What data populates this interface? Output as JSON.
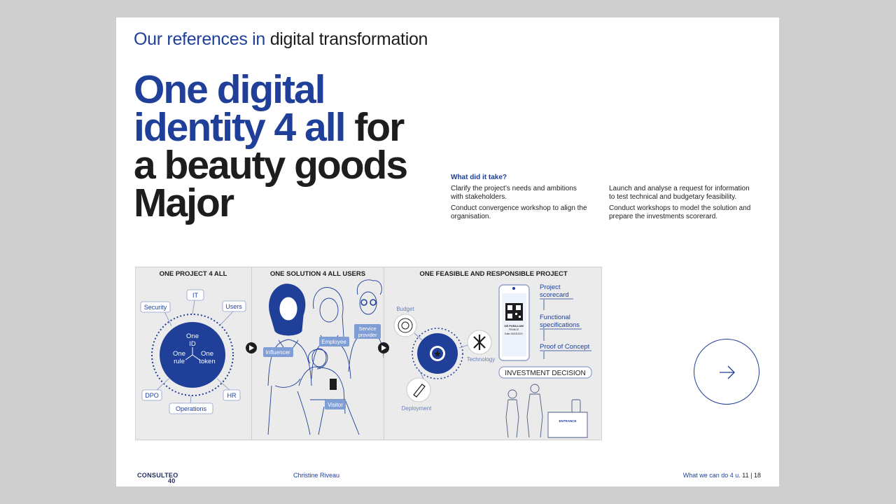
{
  "header": {
    "kicker_blue": "Our references in",
    "kicker_dark": "digital transformation"
  },
  "headline": {
    "blue_line1": "One digital",
    "blue_line2": "identity 4 all",
    "dark_line2": "for",
    "dark_line3": "a beauty goods",
    "dark_line4": "Major"
  },
  "what_it_took": {
    "title": "What did it take?",
    "col1": [
      "Clarify the project’s needs and ambitions with stakeholders.",
      "Conduct convergence workshop to align the organisation."
    ],
    "col2": [
      "Launch and analyse a request for information to test technical and budgetary feasibility.",
      "Conduct workshops to model the solution and prepare the investments scorerard."
    ]
  },
  "illustration": {
    "panel1": {
      "title": "ONE PROJECT 4 ALL",
      "center_top": [
        "One",
        "ID"
      ],
      "center_left": [
        "One",
        "rule"
      ],
      "center_right": [
        "One",
        "token"
      ],
      "labels": [
        "IT",
        "Security",
        "Users",
        "DPO",
        "HR",
        "Operations"
      ]
    },
    "panel2": {
      "title": "ONE SOLUTION 4 ALL USERS",
      "labels": [
        "Influencer",
        "Employee",
        "Service",
        "provider",
        "Visitor"
      ]
    },
    "panel3": {
      "title": "ONE FEASIBLE AND RESPONSIBLE PROJECT",
      "labels": [
        "Budget",
        "Technology",
        "Deployment"
      ],
      "phone_text": [
        "OE PUSILLUM",
        "FRANCE",
        "Date 25/03/2021"
      ],
      "steps": [
        "Project",
        "scorecard",
        "Functional",
        "specifications",
        "Proof of Concept"
      ],
      "decision": "INVESTMENT DECISION",
      "entrance": "ENTRANCE"
    }
  },
  "next_button": {
    "icon": "arrow-right-icon",
    "color": "#1f3f99"
  },
  "footer": {
    "logo_main": "CONSULTEO",
    "logo_sub": "40",
    "author": "Christine Riveau",
    "section": "What we can do 4 u.",
    "page": "11 | 18"
  },
  "colors": {
    "brand_blue": "#1f3f99",
    "dark_text": "#1d1d1f",
    "panel_bg": "#ebebeb",
    "backdrop": "#cfcfcf"
  }
}
